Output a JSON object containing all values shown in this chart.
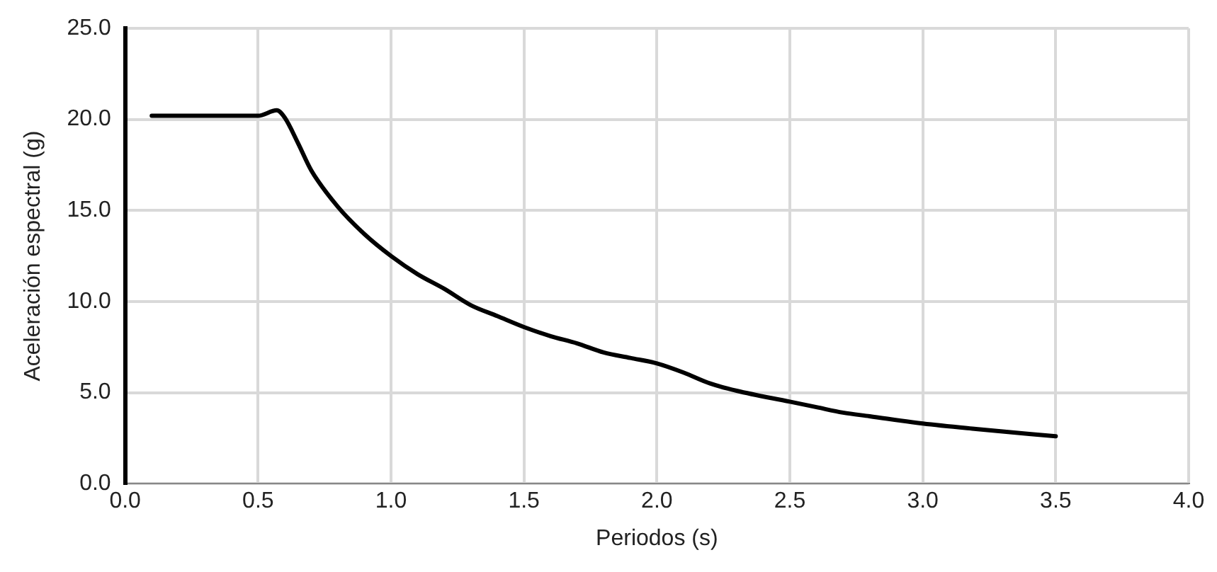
{
  "chart_data": {
    "type": "line",
    "xlabel": "Periodos (s)",
    "ylabel": "Aceleración espectral (g)",
    "x": [
      0.1,
      0.3,
      0.5,
      0.57,
      0.6,
      0.65,
      0.7,
      0.8,
      0.9,
      1.0,
      1.1,
      1.2,
      1.3,
      1.4,
      1.5,
      1.6,
      1.7,
      1.8,
      1.9,
      2.0,
      2.1,
      2.2,
      2.3,
      2.5,
      2.6,
      2.7,
      2.8,
      3.0,
      3.2,
      3.5
    ],
    "series": [
      {
        "color": "#000000",
        "values": [
          20.2,
          20.2,
          20.2,
          20.5,
          20.1,
          18.7,
          17.2,
          15.2,
          13.7,
          12.5,
          11.5,
          10.7,
          9.8,
          9.2,
          8.6,
          8.1,
          7.7,
          7.2,
          6.9,
          6.6,
          6.1,
          5.5,
          5.1,
          4.5,
          4.2,
          3.9,
          3.7,
          3.3,
          3.0,
          2.6
        ]
      }
    ],
    "xlim": [
      0,
      4
    ],
    "xticks": [
      {
        "value": 0,
        "label": "0.0"
      },
      {
        "value": 0.5,
        "label": "0.5"
      },
      {
        "value": 1,
        "label": "1.0"
      },
      {
        "value": 1.5,
        "label": "1.5"
      },
      {
        "value": 2,
        "label": "2.0"
      },
      {
        "value": 2.5,
        "label": "2.5"
      },
      {
        "value": 3,
        "label": "3.0"
      },
      {
        "value": 3.5,
        "label": "3.5"
      },
      {
        "value": 4,
        "label": "4.0"
      }
    ],
    "ylim": [
      0,
      25
    ],
    "yticks": [
      {
        "value": 0,
        "label": "0.0"
      },
      {
        "value": 5,
        "label": "5.0"
      },
      {
        "value": 10,
        "label": "10.0"
      },
      {
        "value": 15,
        "label": "15.0"
      },
      {
        "value": 20,
        "label": "20.0"
      },
      {
        "value": 25,
        "label": "25.0"
      }
    ],
    "grid": true,
    "legend": false,
    "marker": "none",
    "line_style": "solid"
  }
}
